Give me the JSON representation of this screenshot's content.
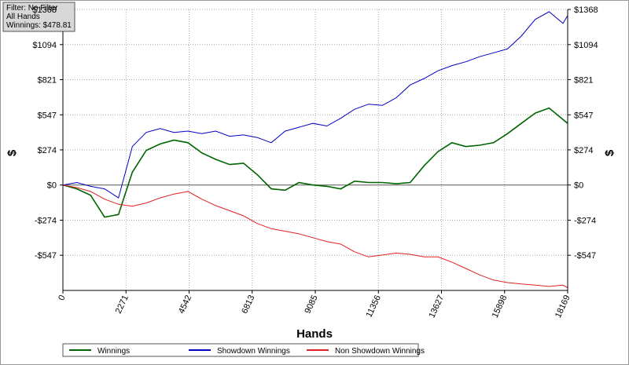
{
  "chart_data": {
    "type": "line",
    "info": [
      "Filter: No Filter",
      "All Hands",
      "Winnings: $478.81"
    ],
    "xlabel": "Hands",
    "ylabel": "$",
    "xlim": [
      0,
      18169
    ],
    "xticks": [
      0,
      2271,
      4542,
      6813,
      9085,
      11356,
      13627,
      15898,
      18169
    ],
    "ylim": [
      -821,
      1368
    ],
    "yticks": [
      {
        "value": -547,
        "label": "-$547"
      },
      {
        "value": -274,
        "label": "-$274"
      },
      {
        "value": 0,
        "label": "$0"
      },
      {
        "value": 274,
        "label": "$274"
      },
      {
        "value": 547,
        "label": "$547"
      },
      {
        "value": 821,
        "label": "$821"
      },
      {
        "value": 1094,
        "label": "$1094"
      },
      {
        "value": 1368,
        "label": "$1368"
      }
    ],
    "grid": true,
    "x": [
      0,
      500,
      1000,
      1500,
      2000,
      2500,
      3000,
      3500,
      4000,
      4500,
      5000,
      5500,
      6000,
      6500,
      7000,
      7500,
      8000,
      8500,
      9000,
      9500,
      10000,
      10500,
      11000,
      11500,
      12000,
      12500,
      13000,
      13500,
      14000,
      14500,
      15000,
      15500,
      16000,
      16500,
      17000,
      17500,
      18000,
      18169
    ],
    "series": [
      {
        "name": "Winnings",
        "color": "#006400",
        "values": [
          0,
          -30,
          -80,
          -250,
          -230,
          100,
          270,
          320,
          350,
          330,
          250,
          200,
          160,
          170,
          80,
          -30,
          -40,
          20,
          0,
          -10,
          -30,
          30,
          20,
          20,
          10,
          20,
          150,
          260,
          330,
          300,
          310,
          330,
          400,
          480,
          560,
          600,
          510,
          480
        ]
      },
      {
        "name": "Showdown Winnings",
        "color": "#0000c0",
        "values": [
          0,
          20,
          -10,
          -30,
          -100,
          300,
          410,
          440,
          410,
          420,
          400,
          420,
          380,
          390,
          370,
          330,
          420,
          450,
          480,
          460,
          520,
          590,
          630,
          620,
          680,
          780,
          830,
          890,
          930,
          960,
          1000,
          1030,
          1060,
          1160,
          1290,
          1350,
          1260,
          1320
        ]
      },
      {
        "name": "Non Showdown Winnings",
        "color": "#e02020",
        "values": [
          0,
          -20,
          -50,
          -110,
          -150,
          -165,
          -140,
          -100,
          -70,
          -50,
          -110,
          -160,
          -200,
          -240,
          -300,
          -340,
          -360,
          -380,
          -410,
          -440,
          -460,
          -520,
          -560,
          -545,
          -530,
          -540,
          -560,
          -560,
          -600,
          -650,
          -700,
          -740,
          -760,
          -770,
          -780,
          -790,
          -780,
          -800
        ]
      }
    ]
  }
}
